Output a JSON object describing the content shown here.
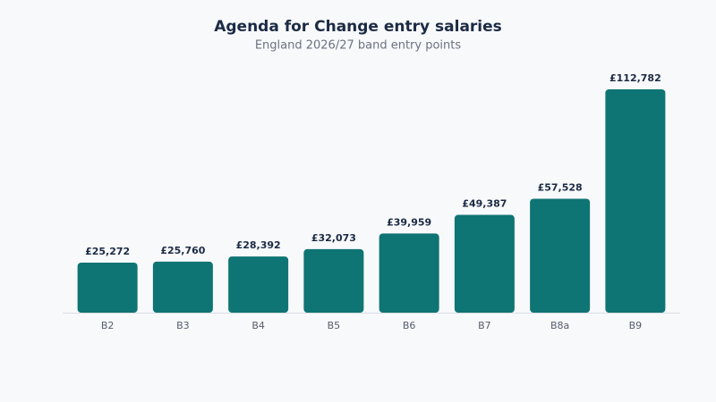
{
  "chart_data": {
    "type": "bar",
    "title": "Agenda for Change entry salaries",
    "subtitle": "England 2026/27 band entry points",
    "categories": [
      "B2",
      "B3",
      "B4",
      "B5",
      "B6",
      "B7",
      "B8a",
      "B9"
    ],
    "values": [
      25272,
      25760,
      28392,
      32073,
      39959,
      49387,
      57528,
      112782
    ],
    "value_labels": [
      "£25,272",
      "£25,760",
      "£28,392",
      "£32,073",
      "£39,959",
      "£49,387",
      "£57,528",
      "£112,782"
    ],
    "color": "#0f7474"
  }
}
